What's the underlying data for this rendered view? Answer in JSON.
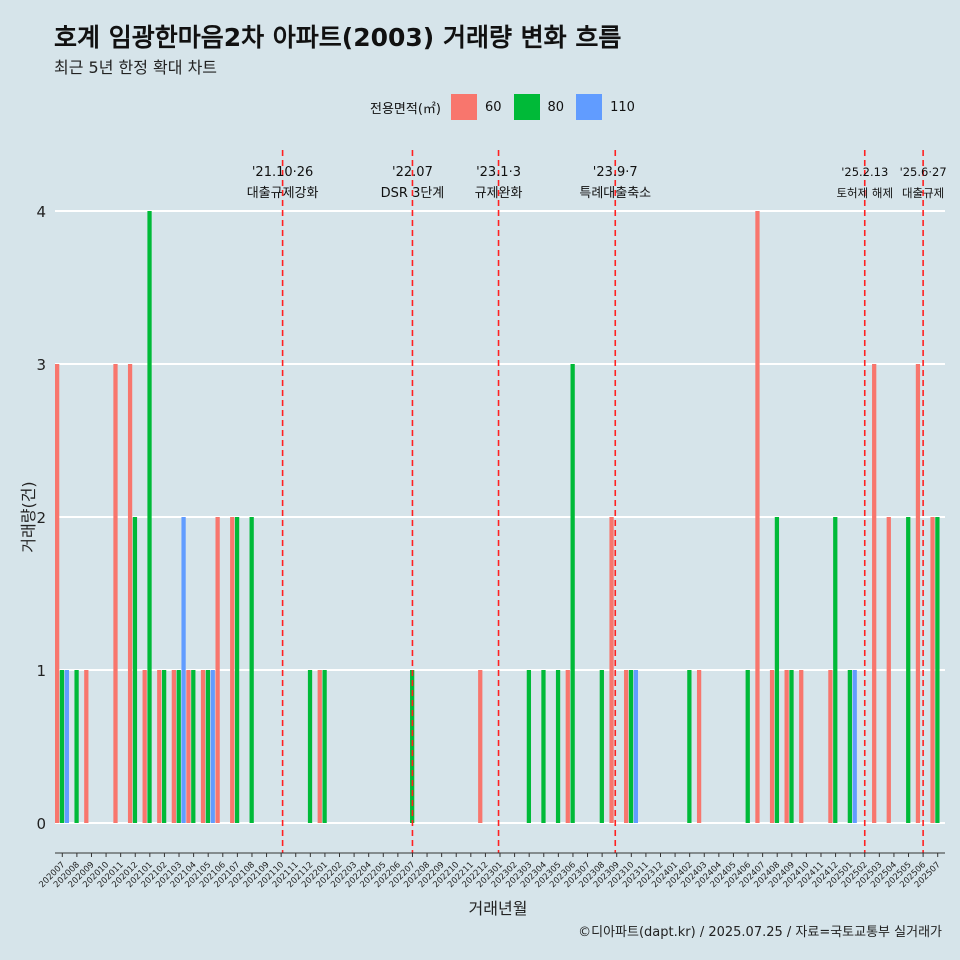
{
  "title": "호계 임광한마음2차 아파트(2003) 거래량 변화 흐름",
  "subtitle": "최근 5년 한정 확대 차트",
  "caption": "©디아파트(dapt.kr) / 2025.07.25 / 자료=국토교통부 실거래가",
  "legend": {
    "title": "전용면적(㎡)",
    "items": [
      {
        "label": "60",
        "color": "#f8766d"
      },
      {
        "label": "80",
        "color": "#00ba38"
      },
      {
        "label": "110",
        "color": "#619cff"
      }
    ]
  },
  "chart_data": {
    "type": "bar",
    "xlabel": "거래년월",
    "ylabel": "거래량(건)",
    "ylim": [
      0,
      4
    ],
    "yticks": [
      0,
      1,
      2,
      3,
      4
    ],
    "categories": [
      "202007",
      "202008",
      "202009",
      "202010",
      "202011",
      "202012",
      "202101",
      "202102",
      "202103",
      "202104",
      "202105",
      "202106",
      "202107",
      "202108",
      "202109",
      "202110",
      "202111",
      "202112",
      "202201",
      "202202",
      "202203",
      "202204",
      "202205",
      "202206",
      "202207",
      "202208",
      "202209",
      "202210",
      "202211",
      "202212",
      "202301",
      "202302",
      "202303",
      "202304",
      "202305",
      "202306",
      "202307",
      "202308",
      "202309",
      "202310",
      "202311",
      "202312",
      "202401",
      "202402",
      "202403",
      "202404",
      "202405",
      "202406",
      "202407",
      "202408",
      "202409",
      "202410",
      "202411",
      "202412",
      "202501",
      "202502",
      "202503",
      "202504",
      "202505",
      "202506",
      "202507"
    ],
    "series": [
      {
        "name": "60",
        "color": "#f8766d",
        "values": [
          3,
          0,
          1,
          0,
          3,
          3,
          1,
          1,
          1,
          1,
          1,
          2,
          2,
          0,
          0,
          0,
          0,
          0,
          1,
          0,
          0,
          0,
          0,
          0,
          0,
          0,
          0,
          0,
          0,
          1,
          0,
          0,
          0,
          0,
          0,
          1,
          0,
          0,
          2,
          1,
          0,
          0,
          0,
          0,
          1,
          0,
          0,
          0,
          4,
          1,
          1,
          1,
          0,
          1,
          0,
          0,
          3,
          2,
          0,
          3,
          2
        ]
      },
      {
        "name": "80",
        "color": "#00ba38",
        "values": [
          1,
          1,
          0,
          0,
          0,
          2,
          4,
          1,
          1,
          1,
          1,
          0,
          2,
          2,
          0,
          0,
          0,
          1,
          1,
          0,
          0,
          0,
          0,
          0,
          1,
          0,
          0,
          0,
          0,
          0,
          0,
          0,
          1,
          1,
          1,
          3,
          0,
          1,
          0,
          1,
          0,
          0,
          0,
          1,
          0,
          0,
          0,
          1,
          0,
          2,
          1,
          0,
          0,
          2,
          1,
          0,
          0,
          0,
          2,
          0,
          2
        ]
      },
      {
        "name": "110",
        "color": "#619cff",
        "values": [
          1,
          0,
          0,
          0,
          0,
          0,
          0,
          0,
          2,
          0,
          1,
          0,
          0,
          0,
          0,
          0,
          0,
          0,
          0,
          0,
          0,
          0,
          0,
          0,
          0,
          0,
          0,
          0,
          0,
          0,
          0,
          0,
          0,
          0,
          0,
          0,
          0,
          0,
          0,
          1,
          0,
          0,
          0,
          0,
          0,
          0,
          0,
          0,
          0,
          0,
          0,
          0,
          0,
          0,
          1,
          0,
          0,
          0,
          0,
          0,
          0
        ]
      }
    ],
    "grid": true,
    "legend_position": "top",
    "annotations": [
      {
        "date": "'21.10·26",
        "label": "대출규제강화",
        "month": "202110",
        "pos": 15.6
      },
      {
        "date": "'22.07",
        "label": "DSR 3단계",
        "month": "202207",
        "pos": 24.5
      },
      {
        "date": "'23.1·3",
        "label": "규제완화",
        "month": "202301",
        "pos": 30.4
      },
      {
        "date": "'23.9·7",
        "label": "특례대출축소",
        "month": "202309",
        "pos": 38.4
      },
      {
        "date": "'25.2.13",
        "label": "토허제 해제",
        "month": "202502",
        "pos": 55.5
      },
      {
        "date": "'25.6·27",
        "label": "대출규제",
        "month": "202506",
        "pos": 59.5
      }
    ]
  }
}
